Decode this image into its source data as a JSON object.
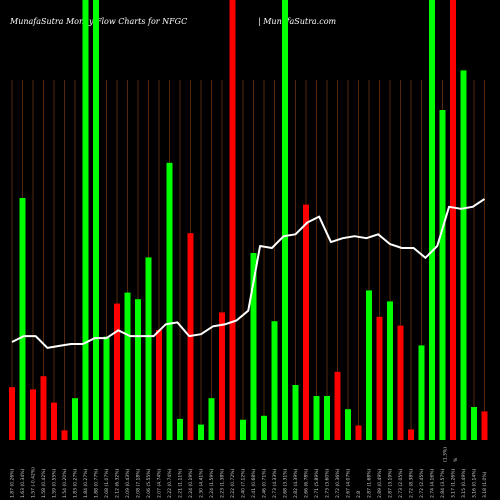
{
  "header": {
    "left_text": "MunafaSutra  Money Flow  Charts for NFGC",
    "right_text": "| MunafaSutra.com"
  },
  "colors": {
    "background": "#000000",
    "up_bar": "#00ff00",
    "down_bar": "#ff0000",
    "price_line": "#ffffff",
    "grid_line": "#8b4513"
  },
  "chart_data": {
    "type": "bar",
    "title": "",
    "xlabel": "",
    "ylabel": "",
    "grid": "vertical",
    "categories": [
      "1.87 (0.26%)",
      "1.63 (0.34%)",
      "1.57 (-0.42%)",
      "1.58 (0.42%)",
      "1.59 (0.55%)",
      "1.54 (0.20%)",
      "1.83 (0.27%)",
      "1.84 (0.27%)",
      "1.88 (0.77%)",
      "2.08 (1.07%)",
      "2.12 (6.32%)",
      "2.09 (0.43%)",
      "2.08 (7.18%)",
      "2.06 (5.55%)",
      "2.07 (4.74%)",
      "2.22 (0.74%)",
      "2.21 (1.11%)",
      "2.24 (0.19%)",
      "2.30 (4.41%)",
      "2.24 (1.59%)",
      "2.23 (1.38%)",
      "2.22 (0.72%)",
      "2.40 (7.12%)",
      "2.41 (0.68%)",
      "2.46 (0.71%)",
      "2.73 (4.33%)",
      "2.68 (3.31%)",
      "2.82 (4.39%)",
      "2.66 (6.78%)",
      "2.71 (5.89%)",
      "2.73 (3.60%)",
      "2.72 (0.36%)",
      "2.67 (4.07%)",
      "2.8",
      "2.87 (1.68%)",
      "2.89 (0.49%)",
      "2.87 (3.19%)",
      "2.73 (2.05%)",
      "2.72 (8.38%)",
      "2.72 (2.45%)",
      "2.74 (4.16%)",
      "2.84 (3.57%)",
      "3.17 (1.26%)",
      "3.15 (0.49%)",
      "3.16 (0.14%)",
      "3.18 (1.0%)"
    ],
    "x_extra_labels": [
      "(1.3%)",
      "%"
    ],
    "series": [
      {
        "name": "",
        "direction": [
          "down",
          "up",
          "down",
          "down",
          "down",
          "down",
          "up",
          "up",
          "up",
          "up",
          "down",
          "up",
          "up",
          "up",
          "down",
          "up",
          "up",
          "down",
          "up",
          "up",
          "down",
          "down",
          "up",
          "up",
          "up",
          "up",
          "up",
          "up",
          "down",
          "up",
          "up",
          "down",
          "up",
          "down",
          "up",
          "down",
          "up",
          "down",
          "down",
          "up",
          "up",
          "up",
          "down",
          "up",
          "up",
          "down"
        ],
        "values": [
          12,
          55,
          11.5,
          14.5,
          8.5,
          2.2,
          9.5,
          100,
          100,
          23.5,
          31,
          33.5,
          32,
          41.5,
          25,
          63,
          4.8,
          47,
          3.5,
          9.5,
          29,
          100,
          4.6,
          42.5,
          5.5,
          27,
          100,
          12.5,
          53.5,
          10,
          10,
          15.5,
          7,
          3.3,
          34,
          28,
          31.5,
          26,
          2.4,
          21.5,
          100,
          75,
          100,
          84,
          7.5,
          6.5
        ]
      }
    ],
    "price_line": [
      1.64,
      1.67,
      1.67,
      1.61,
      1.62,
      1.63,
      1.63,
      1.66,
      1.66,
      1.7,
      1.67,
      1.67,
      1.67,
      1.73,
      1.74,
      1.67,
      1.68,
      1.72,
      1.73,
      1.75,
      1.8,
      2.13,
      2.12,
      2.18,
      2.19,
      2.25,
      2.28,
      2.15,
      2.17,
      2.18,
      2.17,
      2.19,
      2.14,
      2.12,
      2.12,
      2.07,
      2.13,
      2.33,
      2.32,
      2.33,
      2.37
    ],
    "price_line_x": [
      0,
      1,
      2,
      3,
      4,
      5,
      6,
      7,
      8,
      9,
      10,
      11,
      12,
      13,
      14,
      15,
      16,
      17,
      18,
      19,
      20,
      21,
      22,
      23,
      24,
      25,
      26,
      27,
      28,
      29,
      30,
      31,
      32,
      33,
      34,
      35,
      36,
      37,
      38,
      39,
      40
    ],
    "ylim": [
      0,
      100
    ]
  }
}
